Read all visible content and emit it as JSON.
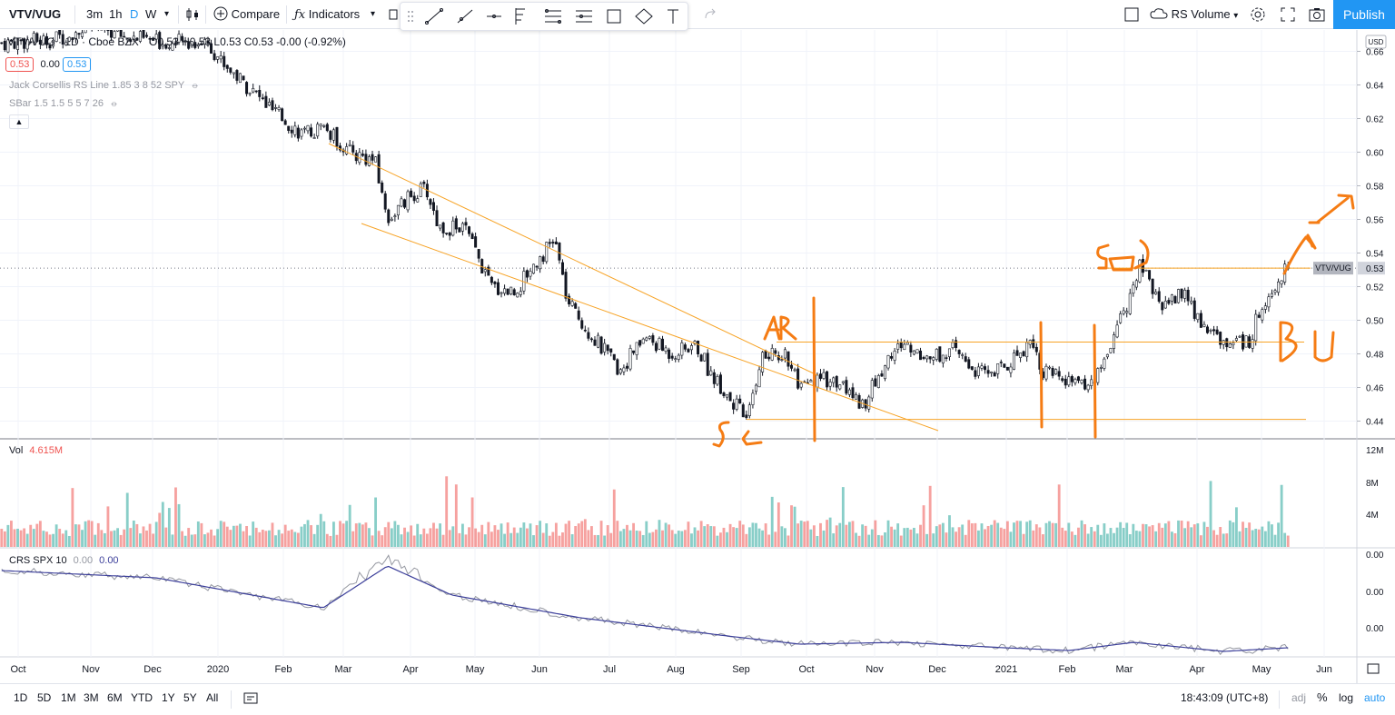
{
  "toolbar": {
    "symbol": "VTV/VUG",
    "intervals": [
      "3m",
      "1h",
      "D",
      "W"
    ],
    "active_interval": "D",
    "compare_label": "Compare",
    "indicators_label": "Indicators",
    "template_label": "RS Volume",
    "publish_label": "Publish"
  },
  "legend": {
    "title": "VTV/VUG · 1D · Cboe BZX",
    "ohlc": "O0.53 H0.53 L0.53 C0.53 -0.00 (-0.92%)",
    "price_left": "0.53",
    "zero_label": "0.00",
    "price_right": "0.53",
    "indicator1": "Jack Corsellis RS Line 1.85 3 8 52 SPY",
    "indicator2": "SBar 1.5 1.5 5 5 7 26",
    "vol_label": "Vol",
    "vol_value": "4.615M",
    "crs_label": "CRS SPX 10",
    "crs_value1": "0.00",
    "crs_value2": "0.00"
  },
  "price_axis": {
    "currency": "USD",
    "ticks": [
      "0.66",
      "0.64",
      "0.62",
      "0.60",
      "0.58",
      "0.56",
      "0.54",
      "0.52",
      "0.50",
      "0.48",
      "0.46",
      "0.44"
    ],
    "last_value": "0.53",
    "symbol_tag": "VTV/VUG"
  },
  "volume_axis": {
    "ticks": [
      "12M",
      "8M",
      "4M"
    ]
  },
  "crs_axis": {
    "ticks": [
      "0.00",
      "0.00",
      "0.00"
    ]
  },
  "time_axis": [
    "Oct",
    "Nov",
    "Dec",
    "2020",
    "Feb",
    "Mar",
    "Apr",
    "May",
    "Jun",
    "Jul",
    "Aug",
    "Sep",
    "Oct",
    "Nov",
    "Dec",
    "2021",
    "Feb",
    "Mar",
    "Apr",
    "May",
    "Jun"
  ],
  "annotations": [
    "AR",
    "SC",
    "SOS",
    "BU"
  ],
  "bottom": {
    "ranges": [
      "1D",
      "5D",
      "1M",
      "3M",
      "6M",
      "YTD",
      "1Y",
      "5Y",
      "All"
    ],
    "clock": "18:43:09 (UTC+8)",
    "adj": "adj",
    "pct": "%",
    "log": "log",
    "auto": "auto"
  },
  "colors": {
    "up": "#26a69a",
    "down": "#ef5350",
    "accent": "#2196f3",
    "trend": "#f7a325",
    "drawing": "#f57c14"
  },
  "chart_data": {
    "type": "candlestick",
    "title": "VTV/VUG · 1D · Cboe BZX",
    "xlabel": "",
    "ylabel": "",
    "ylim": [
      0.43,
      0.67
    ],
    "price_path": [
      [
        0,
        0.665
      ],
      [
        0.04,
        0.667
      ],
      [
        0.07,
        0.675
      ],
      [
        0.1,
        0.668
      ],
      [
        0.13,
        0.665
      ],
      [
        0.16,
        0.666
      ],
      [
        0.17,
        0.655
      ],
      [
        0.19,
        0.64
      ],
      [
        0.21,
        0.625
      ],
      [
        0.235,
        0.61
      ],
      [
        0.25,
        0.615
      ],
      [
        0.27,
        0.6
      ],
      [
        0.29,
        0.595
      ],
      [
        0.3,
        0.56
      ],
      [
        0.32,
        0.575
      ],
      [
        0.33,
        0.578
      ],
      [
        0.34,
        0.555
      ],
      [
        0.36,
        0.555
      ],
      [
        0.38,
        0.52
      ],
      [
        0.4,
        0.517
      ],
      [
        0.41,
        0.53
      ],
      [
        0.43,
        0.548
      ],
      [
        0.44,
        0.51
      ],
      [
        0.46,
        0.49
      ],
      [
        0.48,
        0.47
      ],
      [
        0.5,
        0.49
      ],
      [
        0.52,
        0.48
      ],
      [
        0.54,
        0.485
      ],
      [
        0.55,
        0.47
      ],
      [
        0.57,
        0.45
      ],
      [
        0.58,
        0.44
      ],
      [
        0.59,
        0.478
      ],
      [
        0.61,
        0.48
      ],
      [
        0.62,
        0.458
      ],
      [
        0.64,
        0.465
      ],
      [
        0.65,
        0.463
      ],
      [
        0.67,
        0.45
      ],
      [
        0.69,
        0.478
      ],
      [
        0.7,
        0.486
      ],
      [
        0.72,
        0.478
      ],
      [
        0.74,
        0.482
      ],
      [
        0.76,
        0.468
      ],
      [
        0.78,
        0.472
      ],
      [
        0.8,
        0.488
      ],
      [
        0.81,
        0.47
      ],
      [
        0.83,
        0.462
      ],
      [
        0.85,
        0.464
      ],
      [
        0.87,
        0.5
      ],
      [
        0.885,
        0.532
      ],
      [
        0.9,
        0.51
      ],
      [
        0.92,
        0.516
      ],
      [
        0.93,
        0.5
      ],
      [
        0.95,
        0.487
      ],
      [
        0.97,
        0.488
      ],
      [
        0.98,
        0.51
      ],
      [
        0.995,
        0.528
      ],
      [
        1.0,
        0.53
      ]
    ],
    "levels": [
      0.487,
      0.531,
      0.441
    ]
  }
}
